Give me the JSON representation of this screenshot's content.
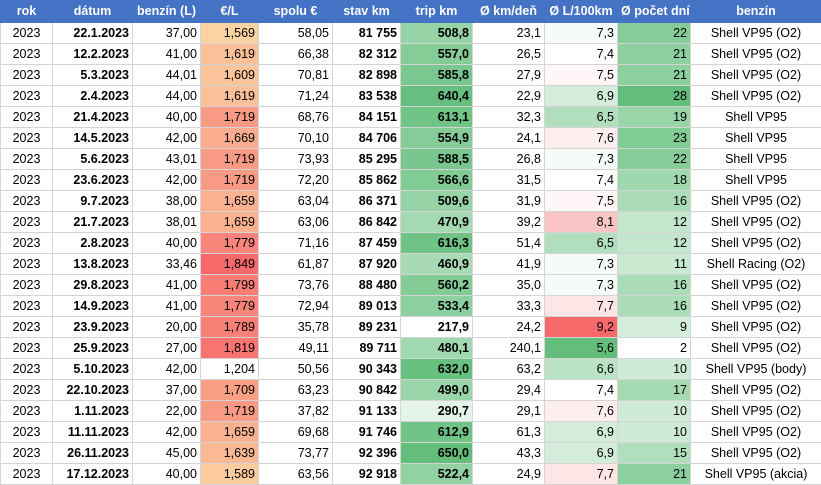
{
  "columns": [
    "rok",
    "dátum",
    "benzín (L)",
    "€/L",
    "spolu €",
    "stav km",
    "trip km",
    "Ø km/deň",
    "Ø L/100km",
    "Ø počet dní",
    "benzín"
  ],
  "rows": [
    {
      "rok": "2023",
      "datum": "22.1.2023",
      "benzin": "37,00",
      "cena": "1,569",
      "spolu": "58,05",
      "stav": "81 755",
      "trip": "508,8",
      "kmden": "23,1",
      "spotreba": "7,3",
      "dni": "22",
      "typ": "Shell VP95 (O2)"
    },
    {
      "rok": "2023",
      "datum": "12.2.2023",
      "benzin": "41,00",
      "cena": "1,619",
      "spolu": "66,38",
      "stav": "82 312",
      "trip": "557,0",
      "kmden": "26,5",
      "spotreba": "7,4",
      "dni": "21",
      "typ": "Shell VP95 (O2)"
    },
    {
      "rok": "2023",
      "datum": "5.3.2023",
      "benzin": "44,01",
      "cena": "1,609",
      "spolu": "70,81",
      "stav": "82 898",
      "trip": "585,8",
      "kmden": "27,9",
      "spotreba": "7,5",
      "dni": "21",
      "typ": "Shell VP95 (O2)"
    },
    {
      "rok": "2023",
      "datum": "2.4.2023",
      "benzin": "44,00",
      "cena": "1,619",
      "spolu": "71,24",
      "stav": "83 538",
      "trip": "640,4",
      "kmden": "22,9",
      "spotreba": "6,9",
      "dni": "28",
      "typ": "Shell VP95 (O2)"
    },
    {
      "rok": "2023",
      "datum": "21.4.2023",
      "benzin": "40,00",
      "cena": "1,719",
      "spolu": "68,76",
      "stav": "84 151",
      "trip": "613,1",
      "kmden": "32,3",
      "spotreba": "6,5",
      "dni": "19",
      "typ": "Shell VP95"
    },
    {
      "rok": "2023",
      "datum": "14.5.2023",
      "benzin": "42,00",
      "cena": "1,669",
      "spolu": "70,10",
      "stav": "84 706",
      "trip": "554,9",
      "kmden": "24,1",
      "spotreba": "7,6",
      "dni": "23",
      "typ": "Shell VP95"
    },
    {
      "rok": "2023",
      "datum": "5.6.2023",
      "benzin": "43,01",
      "cena": "1,719",
      "spolu": "73,93",
      "stav": "85 295",
      "trip": "588,5",
      "kmden": "26,8",
      "spotreba": "7,3",
      "dni": "22",
      "typ": "Shell VP95"
    },
    {
      "rok": "2023",
      "datum": "23.6.2023",
      "benzin": "42,00",
      "cena": "1,719",
      "spolu": "72,20",
      "stav": "85 862",
      "trip": "566,6",
      "kmden": "31,5",
      "spotreba": "7,4",
      "dni": "18",
      "typ": "Shell VP95"
    },
    {
      "rok": "2023",
      "datum": "9.7.2023",
      "benzin": "38,00",
      "cena": "1,659",
      "spolu": "63,04",
      "stav": "86 371",
      "trip": "509,6",
      "kmden": "31,9",
      "spotreba": "7,5",
      "dni": "16",
      "typ": "Shell VP95 (O2)"
    },
    {
      "rok": "2023",
      "datum": "21.7.2023",
      "benzin": "38,01",
      "cena": "1,659",
      "spolu": "63,06",
      "stav": "86 842",
      "trip": "470,9",
      "kmden": "39,2",
      "spotreba": "8,1",
      "dni": "12",
      "typ": "Shell VP95 (O2)"
    },
    {
      "rok": "2023",
      "datum": "2.8.2023",
      "benzin": "40,00",
      "cena": "1,779",
      "spolu": "71,16",
      "stav": "87 459",
      "trip": "616,3",
      "kmden": "51,4",
      "spotreba": "6,5",
      "dni": "12",
      "typ": "Shell VP95 (O2)"
    },
    {
      "rok": "2023",
      "datum": "13.8.2023",
      "benzin": "33,46",
      "cena": "1,849",
      "spolu": "61,87",
      "stav": "87 920",
      "trip": "460,9",
      "kmden": "41,9",
      "spotreba": "7,3",
      "dni": "11",
      "typ": "Shell Racing (O2)"
    },
    {
      "rok": "2023",
      "datum": "29.8.2023",
      "benzin": "41,00",
      "cena": "1,799",
      "spolu": "73,76",
      "stav": "88 480",
      "trip": "560,2",
      "kmden": "35,0",
      "spotreba": "7,3",
      "dni": "16",
      "typ": "Shell VP95 (O2)"
    },
    {
      "rok": "2023",
      "datum": "14.9.2023",
      "benzin": "41,00",
      "cena": "1,779",
      "spolu": "72,94",
      "stav": "89 013",
      "trip": "533,4",
      "kmden": "33,3",
      "spotreba": "7,7",
      "dni": "16",
      "typ": "Shell VP95 (O2)"
    },
    {
      "rok": "2023",
      "datum": "23.9.2023",
      "benzin": "20,00",
      "cena": "1,789",
      "spolu": "35,78",
      "stav": "89 231",
      "trip": "217,9",
      "kmden": "24,2",
      "spotreba": "9,2",
      "dni": "9",
      "typ": "Shell VP95 (O2)"
    },
    {
      "rok": "2023",
      "datum": "25.9.2023",
      "benzin": "27,00",
      "cena": "1,819",
      "spolu": "49,11",
      "stav": "89 711",
      "trip": "480,1",
      "kmden": "240,1",
      "spotreba": "5,6",
      "dni": "2",
      "typ": "Shell VP95 (O2)"
    },
    {
      "rok": "2023",
      "datum": "5.10.2023",
      "benzin": "42,00",
      "cena": "1,204",
      "spolu": "50,56",
      "stav": "90 343",
      "trip": "632,0",
      "kmden": "63,2",
      "spotreba": "6,6",
      "dni": "10",
      "typ": "Shell VP95 (body)"
    },
    {
      "rok": "2023",
      "datum": "22.10.2023",
      "benzin": "37,00",
      "cena": "1,709",
      "spolu": "63,23",
      "stav": "90 842",
      "trip": "499,0",
      "kmden": "29,4",
      "spotreba": "7,4",
      "dni": "17",
      "typ": "Shell VP95 (O2)"
    },
    {
      "rok": "2023",
      "datum": "1.11.2023",
      "benzin": "22,00",
      "cena": "1,719",
      "spolu": "37,82",
      "stav": "91 133",
      "trip": "290,7",
      "kmden": "29,1",
      "spotreba": "7,6",
      "dni": "10",
      "typ": "Shell VP95 (O2)"
    },
    {
      "rok": "2023",
      "datum": "11.11.2023",
      "benzin": "42,00",
      "cena": "1,659",
      "spolu": "69,68",
      "stav": "91 746",
      "trip": "612,9",
      "kmden": "61,3",
      "spotreba": "6,9",
      "dni": "10",
      "typ": "Shell VP95 (O2)"
    },
    {
      "rok": "2023",
      "datum": "26.11.2023",
      "benzin": "45,00",
      "cena": "1,639",
      "spolu": "73,77",
      "stav": "92 396",
      "trip": "650,0",
      "kmden": "43,3",
      "spotreba": "6,9",
      "dni": "15",
      "typ": "Shell VP95 (O2)"
    },
    {
      "rok": "2023",
      "datum": "17.12.2023",
      "benzin": "40,00",
      "cena": "1,589",
      "spolu": "63,56",
      "stav": "92 918",
      "trip": "522,4",
      "kmden": "24,9",
      "spotreba": "7,7",
      "dni": "21",
      "typ": "Shell VP95 (akcia)"
    }
  ],
  "colors": {
    "header_bg": "#4472c4",
    "header_text": "#ffffff",
    "grid": "#d4d4d4",
    "price_low": "#fbd3a2",
    "price_high": "#f8696b",
    "trip_low": "#ffffff",
    "trip_high": "#63be7b",
    "consumption_low": "#63be7b",
    "consumption_mid": "#ffffff",
    "consumption_high": "#f8696b",
    "days_low": "#ffffff",
    "days_high": "#63be7b"
  }
}
